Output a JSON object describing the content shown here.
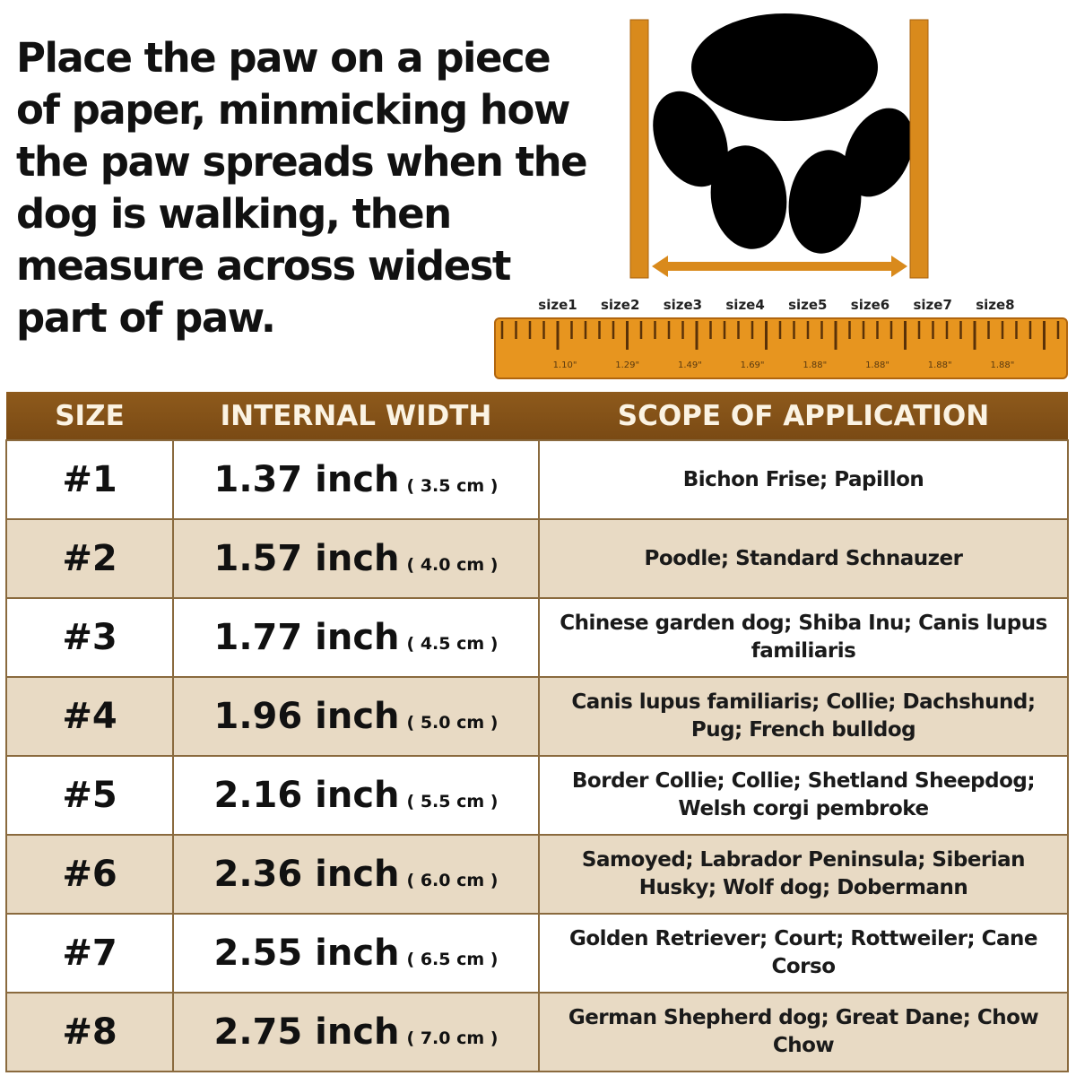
{
  "instructions": "Place the paw on a piece of paper, minmicking how the paw spreads when the dog is walking, then measure across widest part of paw.",
  "colors": {
    "accent": "#d98a1c",
    "header": "#8b5a1c",
    "row_alt": "#e8dac4"
  },
  "ruler": {
    "sizes": [
      "size1",
      "size2",
      "size3",
      "size4",
      "size5",
      "size6",
      "size7",
      "size8"
    ],
    "values": [
      "1.10\"",
      "1.29\"",
      "1.49\"",
      "1.69\"",
      "1.88\"",
      "1.88\"",
      "1.88\"",
      "1.88\""
    ]
  },
  "table": {
    "headers": [
      "SIZE",
      "INTERNAL WIDTH",
      "SCOPE OF APPLICATION"
    ],
    "rows": [
      {
        "size": "#1",
        "width": "1.37 inch",
        "cm": "( 3.5 cm )",
        "scope": "Bichon Frise; Papillon"
      },
      {
        "size": "#2",
        "width": "1.57 inch",
        "cm": "( 4.0 cm )",
        "scope": "Poodle; Standard Schnauzer"
      },
      {
        "size": "#3",
        "width": "1.77 inch",
        "cm": "( 4.5 cm )",
        "scope": "Chinese garden dog; Shiba Inu; Canis lupus familiaris"
      },
      {
        "size": "#4",
        "width": "1.96 inch",
        "cm": "( 5.0 cm )",
        "scope": "Canis lupus familiaris; Collie; Dachshund; Pug; French bulldog"
      },
      {
        "size": "#5",
        "width": "2.16 inch",
        "cm": "( 5.5 cm )",
        "scope": "Border Collie; Collie; Shetland Sheepdog; Welsh corgi pembroke"
      },
      {
        "size": "#6",
        "width": "2.36 inch",
        "cm": "( 6.0 cm )",
        "scope": "Samoyed; Labrador Peninsula; Siberian Husky; Wolf dog; Dobermann"
      },
      {
        "size": "#7",
        "width": "2.55 inch",
        "cm": "( 6.5 cm )",
        "scope": "Golden Retriever; Court; Rottweiler; Cane Corso"
      },
      {
        "size": "#8",
        "width": "2.75 inch",
        "cm": "( 7.0 cm )",
        "scope": "German Shepherd dog; Great Dane; Chow Chow"
      }
    ]
  }
}
